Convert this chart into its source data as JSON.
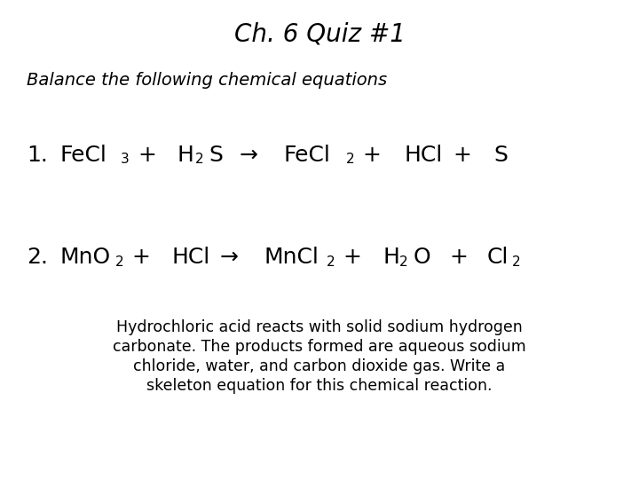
{
  "title": "Ch. 6 Quiz #1",
  "subtitle": "Balance the following chemical equations",
  "background_color": "#ffffff",
  "text_color": "#000000",
  "title_fontsize": 20,
  "subtitle_fontsize": 14,
  "eq_fontsize": 18,
  "sub_fontsize": 11,
  "body_fontsize": 12.5,
  "para_lines": [
    "Hydrochloric acid reacts with solid sodium hydrogen",
    "carbonate. The products formed are aqueous sodium",
    "chloride, water, and carbon dioxide gas. Write a",
    "skeleton equation for this chemical reaction."
  ]
}
